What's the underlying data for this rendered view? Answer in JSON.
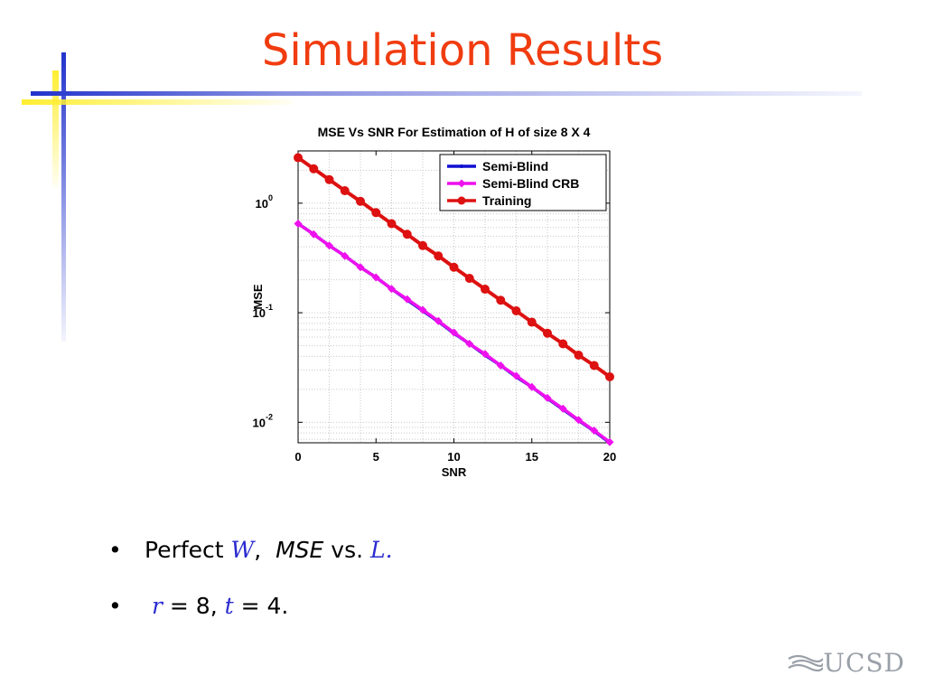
{
  "slide": {
    "title": "Simulation Results",
    "bullets": [
      {
        "marker": "•",
        "pre": "Perfect ",
        "var1": "W",
        "sep": ",  ",
        "mse": "MSE",
        "vs": " vs. ",
        "var2": "L",
        "end": "."
      },
      {
        "marker": "•",
        "var1": "r",
        "eq1": " = 8, ",
        "var2": "t",
        "eq2": " = 4."
      }
    ],
    "logo": "UCSD",
    "colors": {
      "title": "#f03c10",
      "accent_blue": "#2233cc",
      "accent_yellow": "#ffee33",
      "math": "#2a2ad0"
    }
  },
  "chart_data": {
    "type": "line",
    "title": "MSE Vs SNR For Estimation of H of size 8 X 4",
    "xlabel": "SNR",
    "ylabel": "MSE",
    "xlim": [
      0,
      20
    ],
    "ylim": [
      0.0065,
      3
    ],
    "yscale": "log",
    "grid": true,
    "legend_position": "top-right",
    "x": [
      0,
      1,
      2,
      3,
      4,
      5,
      6,
      7,
      8,
      9,
      10,
      11,
      12,
      13,
      14,
      15,
      16,
      17,
      18,
      19,
      20
    ],
    "x_ticks": [
      "0",
      "5",
      "10",
      "15",
      "20"
    ],
    "y_ticks": [
      {
        "value": 1,
        "base": "10",
        "exp": "0"
      },
      {
        "value": 0.1,
        "base": "10",
        "exp": "-1"
      },
      {
        "value": 0.01,
        "base": "10",
        "exp": "-2"
      }
    ],
    "series": [
      {
        "name": "Semi-Blind",
        "color": "#1010d0",
        "marker": "dot",
        "values": [
          0.65,
          0.52,
          0.41,
          0.33,
          0.26,
          0.21,
          0.165,
          0.131,
          0.104,
          0.083,
          0.065,
          0.052,
          0.041,
          0.033,
          0.026,
          0.021,
          0.0165,
          0.0131,
          0.0104,
          0.0083,
          0.0065
        ]
      },
      {
        "name": "Semi-Blind CRB",
        "color": "#ee11ee",
        "marker": "diamond",
        "values": [
          0.65,
          0.52,
          0.41,
          0.33,
          0.26,
          0.21,
          0.165,
          0.133,
          0.106,
          0.084,
          0.066,
          0.052,
          0.042,
          0.033,
          0.0265,
          0.021,
          0.0167,
          0.0133,
          0.0105,
          0.0084,
          0.0066
        ]
      },
      {
        "name": "Training",
        "color": "#dd1111",
        "marker": "circle",
        "values": [
          2.6,
          2.06,
          1.64,
          1.3,
          1.04,
          0.82,
          0.65,
          0.52,
          0.41,
          0.33,
          0.26,
          0.206,
          0.164,
          0.13,
          0.104,
          0.082,
          0.065,
          0.052,
          0.041,
          0.033,
          0.026
        ]
      }
    ]
  }
}
